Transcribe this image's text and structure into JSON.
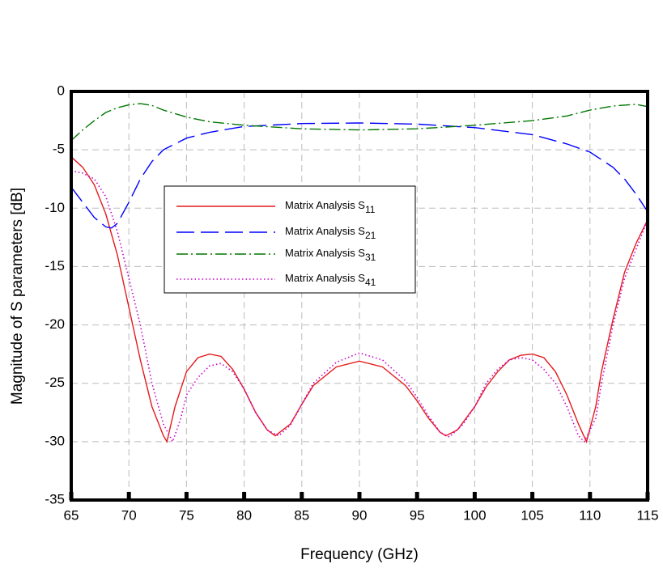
{
  "chart_data": {
    "type": "line",
    "x_label": "Frequency (GHz)",
    "y_label": "Magnitude of S parameters [dB]",
    "xlim": [
      65,
      115
    ],
    "xticks": [
      65,
      70,
      75,
      80,
      85,
      90,
      95,
      100,
      105,
      110,
      115
    ],
    "ylim": [
      -35,
      0
    ],
    "yticks": [
      -35,
      -30,
      -25,
      -20,
      -15,
      -10,
      -5,
      0
    ],
    "grid": true,
    "series": [
      {
        "name": "Matrix Analysis S11",
        "color": "#e41a1c",
        "dash": "solid",
        "x": [
          65,
          66,
          67,
          68,
          69,
          70,
          71,
          72,
          73,
          73.3,
          74,
          75,
          76,
          77,
          78,
          79,
          80,
          81,
          82,
          82.7,
          84,
          85,
          86,
          88,
          90,
          92,
          94,
          95,
          96,
          97,
          97.5,
          98.5,
          100,
          101,
          102,
          103,
          104,
          105,
          106,
          107,
          108,
          109,
          109.7,
          110.5,
          111,
          112,
          113,
          114,
          115
        ],
        "values": [
          -5.6,
          -6.5,
          -8,
          -10.5,
          -14,
          -18.5,
          -23,
          -27,
          -29.5,
          -30,
          -27,
          -24,
          -22.8,
          -22.5,
          -22.7,
          -23.8,
          -25.5,
          -27.5,
          -29,
          -29.5,
          -28.5,
          -26.8,
          -25.2,
          -23.6,
          -23.1,
          -23.6,
          -25.2,
          -26.5,
          -28,
          -29.2,
          -29.5,
          -29,
          -27,
          -25.3,
          -24,
          -23,
          -22.6,
          -22.5,
          -22.8,
          -24,
          -26,
          -28.5,
          -30,
          -27,
          -24,
          -19.5,
          -15.5,
          -13,
          -11
        ]
      },
      {
        "name": "Matrix Analysis S21",
        "color": "#0000ff",
        "dash": "dashed",
        "x": [
          65,
          66,
          67,
          68,
          68.5,
          69,
          70,
          71,
          72,
          73,
          75,
          77,
          80,
          85,
          90,
          95,
          100,
          105,
          108,
          110,
          112,
          113,
          114,
          115
        ],
        "values": [
          -8.2,
          -9.5,
          -10.8,
          -11.6,
          -11.7,
          -11.3,
          -9.5,
          -7.5,
          -6,
          -5,
          -4,
          -3.5,
          -3,
          -2.75,
          -2.7,
          -2.8,
          -3.1,
          -3.7,
          -4.5,
          -5.2,
          -6.5,
          -7.5,
          -8.8,
          -10.3
        ]
      },
      {
        "name": "Matrix Analysis S31",
        "color": "#007700",
        "dash": "dashdot",
        "x": [
          65,
          66,
          67,
          68,
          69,
          70,
          71,
          72,
          73,
          75,
          77,
          80,
          85,
          90,
          95,
          100,
          105,
          108,
          110,
          112,
          114,
          115
        ],
        "values": [
          -4.2,
          -3.3,
          -2.5,
          -1.8,
          -1.4,
          -1.15,
          -1.05,
          -1.2,
          -1.6,
          -2.2,
          -2.6,
          -2.9,
          -3.2,
          -3.3,
          -3.2,
          -2.9,
          -2.5,
          -2.1,
          -1.6,
          -1.25,
          -1.1,
          -1.3
        ]
      },
      {
        "name": "Matrix Analysis S41",
        "color": "#cc00cc",
        "dash": "dotted",
        "x": [
          65,
          66,
          67,
          68,
          69,
          70,
          71,
          72,
          73,
          73.8,
          74.5,
          75,
          76,
          77,
          78,
          79,
          80,
          81,
          82,
          83,
          84,
          85,
          86,
          88,
          90,
          92,
          94,
          95,
          96,
          97,
          97.8,
          99,
          100,
          101,
          102,
          103,
          104,
          105,
          106,
          107,
          108,
          109,
          109.5,
          110.5,
          111,
          112,
          113,
          114,
          115
        ],
        "values": [
          -6.8,
          -7,
          -7.5,
          -9,
          -12,
          -16,
          -20,
          -25,
          -28.5,
          -30,
          -28,
          -26,
          -24.5,
          -23.5,
          -23.3,
          -24,
          -25.5,
          -27.5,
          -29,
          -29.5,
          -28.6,
          -26.8,
          -25,
          -23.2,
          -22.4,
          -23,
          -24.8,
          -26.2,
          -27.8,
          -29.2,
          -29.6,
          -28.5,
          -27,
          -25,
          -23.8,
          -23,
          -22.8,
          -23,
          -23.8,
          -25,
          -27,
          -29.5,
          -30,
          -28,
          -25,
          -20,
          -16,
          -13.5,
          -11
        ]
      }
    ]
  }
}
